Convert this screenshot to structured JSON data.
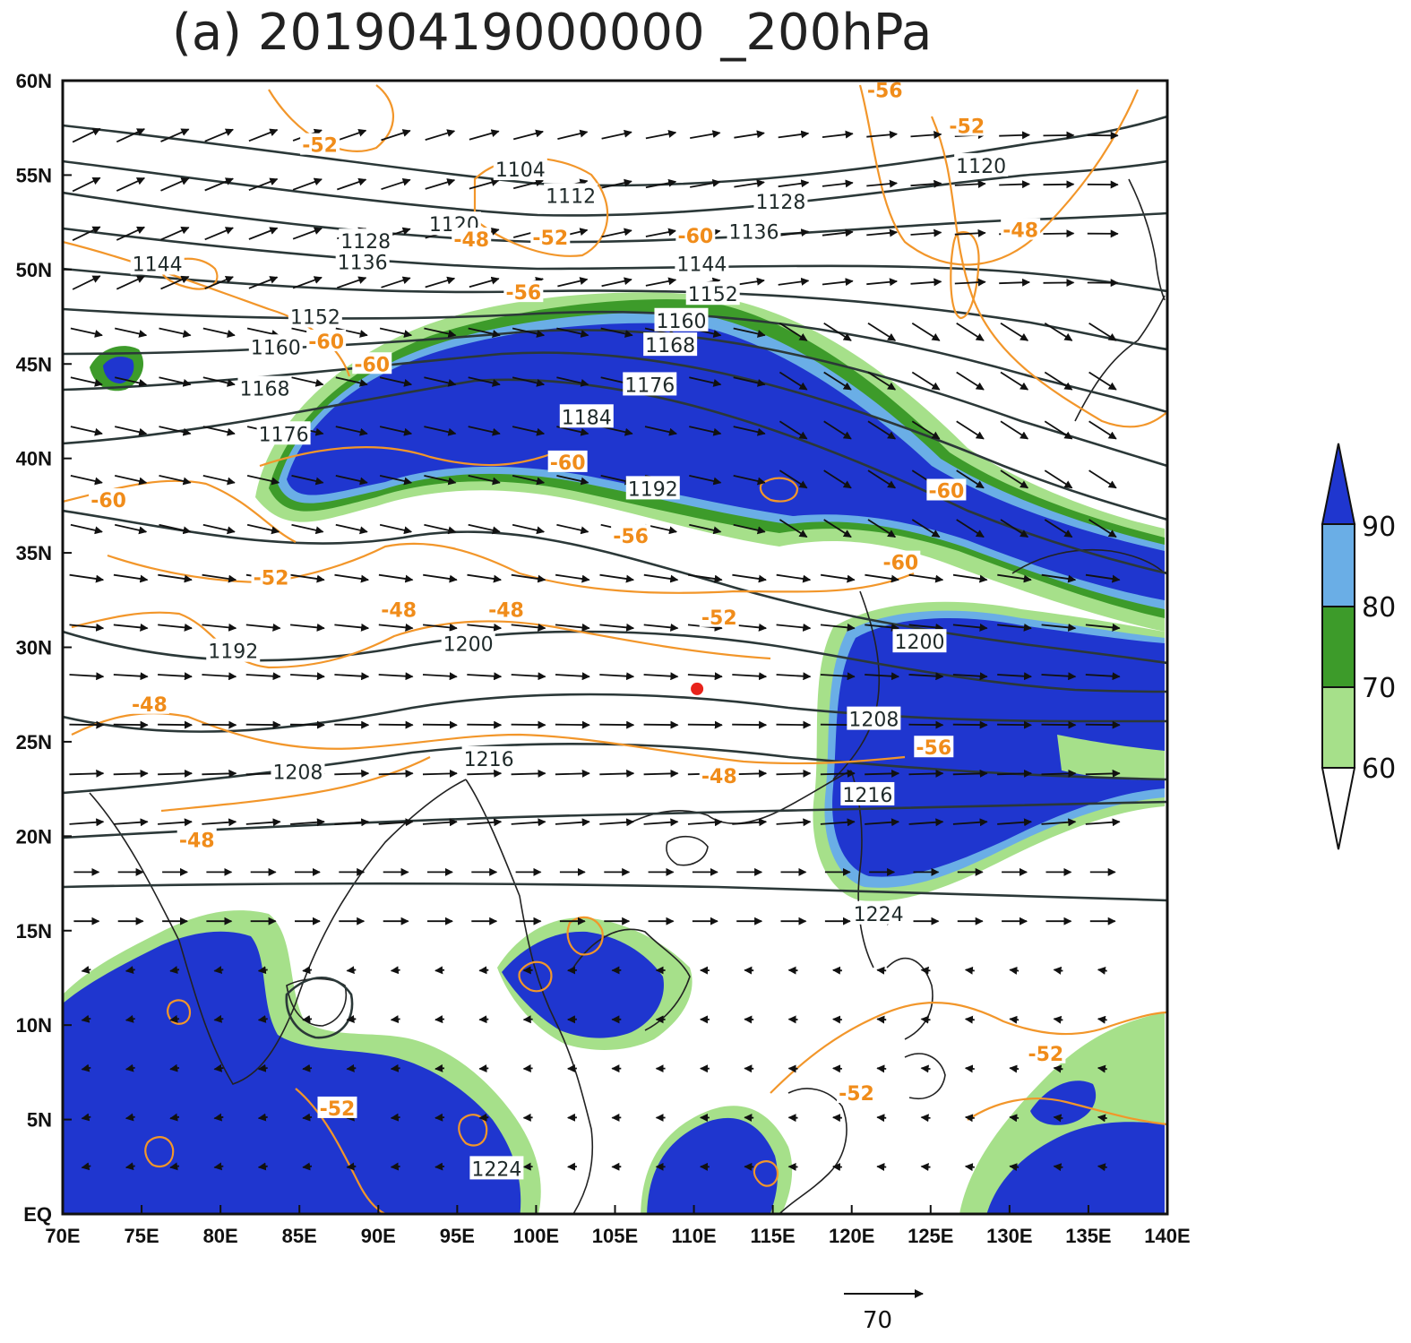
{
  "title": "(a) 20190419000000 _200hPa",
  "colors": {
    "shade_90": "#1f36cf",
    "shade_80": "#6aaee6",
    "shade_70": "#3d9b2a",
    "shade_60": "#a6e08a",
    "height_contour": "#2b3838",
    "temp_contour": "#f2962a",
    "coast": "#222222",
    "marker": "#e8231b"
  },
  "axes": {
    "x_ticks": [
      "70E",
      "75E",
      "80E",
      "85E",
      "90E",
      "95E",
      "100E",
      "105E",
      "110E",
      "115E",
      "120E",
      "125E",
      "130E",
      "135E",
      "140E"
    ],
    "y_ticks": [
      "EQ",
      "5N",
      "10N",
      "15N",
      "20N",
      "25N",
      "30N",
      "35N",
      "40N",
      "45N",
      "50N",
      "55N",
      "60N"
    ],
    "lon_range": [
      70,
      140
    ],
    "lat_range": [
      0,
      60
    ]
  },
  "colorbar": {
    "levels": [
      "60",
      "70",
      "80",
      "90"
    ]
  },
  "reference_vector": {
    "label": "70"
  },
  "height_labels": [
    {
      "text": "1104",
      "lon": 99.0,
      "lat": 55.3
    },
    {
      "text": "1112",
      "lon": 102.2,
      "lat": 53.9
    },
    {
      "text": "1120",
      "lon": 128.2,
      "lat": 55.5
    },
    {
      "text": "1120",
      "lon": 94.8,
      "lat": 52.4
    },
    {
      "text": "1128",
      "lon": 115.5,
      "lat": 53.6
    },
    {
      "text": "1128",
      "lon": 89.2,
      "lat": 51.5
    },
    {
      "text": "1136",
      "lon": 113.8,
      "lat": 52.0
    },
    {
      "text": "1136",
      "lon": 89.0,
      "lat": 50.4
    },
    {
      "text": "1144",
      "lon": 76.0,
      "lat": 50.3
    },
    {
      "text": "1144",
      "lon": 110.5,
      "lat": 50.3
    },
    {
      "text": "1152",
      "lon": 86.0,
      "lat": 47.5
    },
    {
      "text": "1152",
      "lon": 111.2,
      "lat": 48.7
    },
    {
      "text": "1160",
      "lon": 83.5,
      "lat": 45.9
    },
    {
      "text": "1160",
      "lon": 109.2,
      "lat": 47.3
    },
    {
      "text": "1168",
      "lon": 82.8,
      "lat": 43.7
    },
    {
      "text": "1168",
      "lon": 108.5,
      "lat": 46.0
    },
    {
      "text": "1176",
      "lon": 84.0,
      "lat": 41.3
    },
    {
      "text": "1176",
      "lon": 107.2,
      "lat": 43.9
    },
    {
      "text": "1184",
      "lon": 103.2,
      "lat": 42.2
    },
    {
      "text": "1192",
      "lon": 80.8,
      "lat": 29.8
    },
    {
      "text": "1192",
      "lon": 107.4,
      "lat": 38.4
    },
    {
      "text": "1200",
      "lon": 95.7,
      "lat": 30.2
    },
    {
      "text": "1200",
      "lon": 124.3,
      "lat": 30.3
    },
    {
      "text": "1208",
      "lon": 84.9,
      "lat": 23.4
    },
    {
      "text": "1208",
      "lon": 121.4,
      "lat": 26.2
    },
    {
      "text": "1216",
      "lon": 97.0,
      "lat": 24.1
    },
    {
      "text": "1216",
      "lon": 121.0,
      "lat": 22.2
    },
    {
      "text": "1224",
      "lon": 121.7,
      "lat": 15.9
    },
    {
      "text": "1224",
      "lon": 97.5,
      "lat": 2.4
    }
  ],
  "temp_labels": [
    {
      "text": "-56",
      "lon": 122.1,
      "lat": 59.5
    },
    {
      "text": "-52",
      "lon": 86.3,
      "lat": 56.6
    },
    {
      "text": "-52",
      "lon": 127.3,
      "lat": 57.6
    },
    {
      "text": "-48",
      "lon": 130.7,
      "lat": 52.1
    },
    {
      "text": "-48",
      "lon": 95.9,
      "lat": 51.6
    },
    {
      "text": "-52",
      "lon": 100.9,
      "lat": 51.7
    },
    {
      "text": "-60",
      "lon": 110.1,
      "lat": 51.8
    },
    {
      "text": "-56",
      "lon": 99.2,
      "lat": 48.8
    },
    {
      "text": "-60",
      "lon": 86.7,
      "lat": 46.2
    },
    {
      "text": "-60",
      "lon": 89.6,
      "lat": 45.0
    },
    {
      "text": "-60",
      "lon": 102.0,
      "lat": 39.8
    },
    {
      "text": "-60",
      "lon": 72.9,
      "lat": 37.8
    },
    {
      "text": "-60",
      "lon": 126.0,
      "lat": 38.3
    },
    {
      "text": "-56",
      "lon": 106.0,
      "lat": 35.9
    },
    {
      "text": "-60",
      "lon": 123.1,
      "lat": 34.5
    },
    {
      "text": "-52",
      "lon": 83.2,
      "lat": 33.7
    },
    {
      "text": "-48",
      "lon": 91.3,
      "lat": 32.0
    },
    {
      "text": "-48",
      "lon": 98.1,
      "lat": 32.0
    },
    {
      "text": "-52",
      "lon": 111.6,
      "lat": 31.6
    },
    {
      "text": "-48",
      "lon": 75.5,
      "lat": 27.0
    },
    {
      "text": "-56",
      "lon": 125.2,
      "lat": 24.7
    },
    {
      "text": "-48",
      "lon": 111.6,
      "lat": 23.2
    },
    {
      "text": "-48",
      "lon": 78.5,
      "lat": 19.8
    },
    {
      "text": "-52",
      "lon": 132.3,
      "lat": 8.5
    },
    {
      "text": "-52",
      "lon": 120.3,
      "lat": 6.4
    },
    {
      "text": "-52",
      "lon": 87.4,
      "lat": 5.6
    }
  ],
  "marker": {
    "lon": 110.2,
    "lat": 27.8
  }
}
